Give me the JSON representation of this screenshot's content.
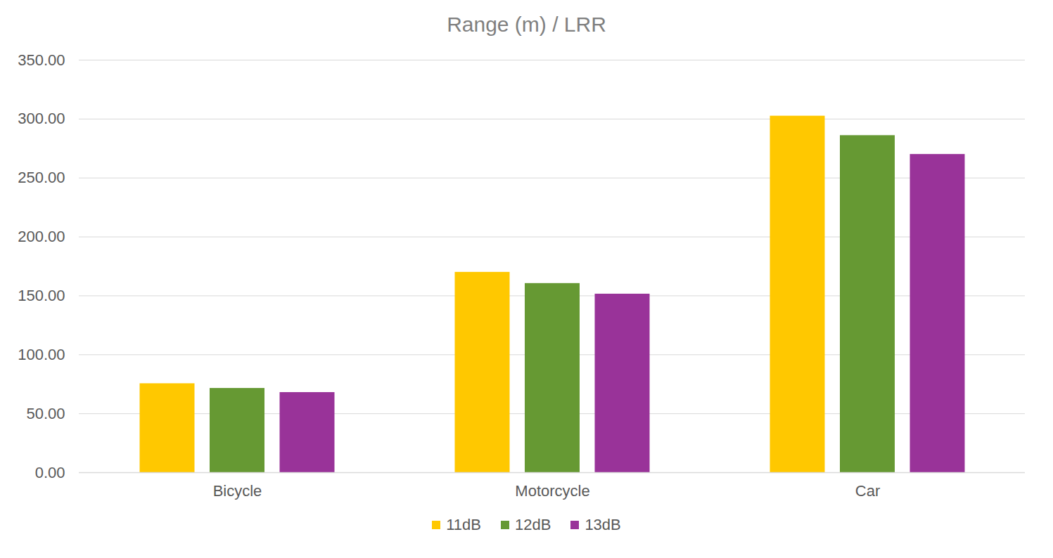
{
  "chart_data": {
    "type": "bar",
    "title": "Range (m) / LRR",
    "categories": [
      "Bicycle",
      "Motorcycle",
      "Car"
    ],
    "series": [
      {
        "name": "11dB",
        "color": "#ffc800",
        "values": [
          75.5,
          170,
          302.5
        ]
      },
      {
        "name": "12dB",
        "color": "#669933",
        "values": [
          71.5,
          160.5,
          286
        ]
      },
      {
        "name": "13dB",
        "color": "#993399",
        "values": [
          68,
          151.5,
          270
        ]
      }
    ],
    "ylim": [
      0,
      350
    ],
    "yticks": [
      {
        "value": 0,
        "label": "0.00"
      },
      {
        "value": 50,
        "label": "50.00"
      },
      {
        "value": 100,
        "label": "100.00"
      },
      {
        "value": 150,
        "label": "150.00"
      },
      {
        "value": 200,
        "label": "200.00"
      },
      {
        "value": 250,
        "label": "250.00"
      },
      {
        "value": 300,
        "label": "300.00"
      },
      {
        "value": 350,
        "label": "350.00"
      }
    ],
    "grid": true,
    "legend": "bottom"
  }
}
